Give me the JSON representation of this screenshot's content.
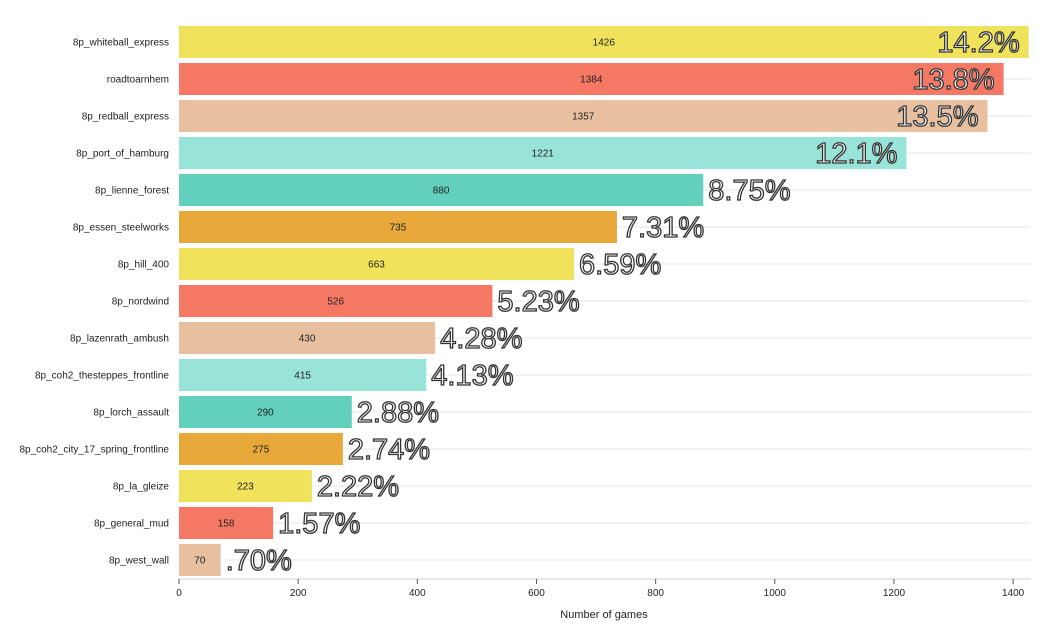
{
  "chart_data": {
    "type": "bar",
    "orientation": "horizontal",
    "categories": [
      "8p_whiteball_express",
      "roadtoarnhem",
      "8p_redball_express",
      "8p_port_of_hamburg",
      "8p_lienne_forest",
      "8p_essen_steelworks",
      "8p_hill_400",
      "8p_nordwind",
      "8p_lazenrath_ambush",
      "8p_coh2_thesteppes_frontline",
      "8p_lorch_assault",
      "8p_coh2_city_17_spring_frontline",
      "8p_la_gleize",
      "8p_general_mud",
      "8p_west_wall"
    ],
    "values": [
      1426,
      1384,
      1357,
      1221,
      880,
      735,
      663,
      526,
      430,
      415,
      290,
      275,
      223,
      158,
      70
    ],
    "value_labels": [
      "1426",
      "1384",
      "1357",
      "1221",
      "880",
      "735",
      "663",
      "526",
      "430",
      "415",
      "290",
      "275",
      "223",
      "158",
      "70"
    ],
    "percent_labels": [
      "14.2%",
      "13.8%",
      "13.5%",
      "12.1%",
      "8.75%",
      "7.31%",
      "6.59%",
      "5.23%",
      "4.28%",
      "4.13%",
      "2.88%",
      "2.74%",
      "2.22%",
      "1.57%",
      ".70%"
    ],
    "colors": [
      "#f0e25a",
      "#f47864",
      "#e8c0a0",
      "#98e4d8",
      "#62d0bd",
      "#e8a83a"
    ],
    "xlabel": "Number of games",
    "ylabel": "",
    "title": "",
    "xlim": [
      0,
      1430
    ],
    "xticks": [
      0,
      200,
      400,
      600,
      800,
      1000,
      1200,
      1400
    ],
    "xtick_labels": [
      "0",
      "200",
      "400",
      "600",
      "800",
      "1000",
      "1200",
      "1400"
    ],
    "grid": "horizontal",
    "legend": "none"
  }
}
